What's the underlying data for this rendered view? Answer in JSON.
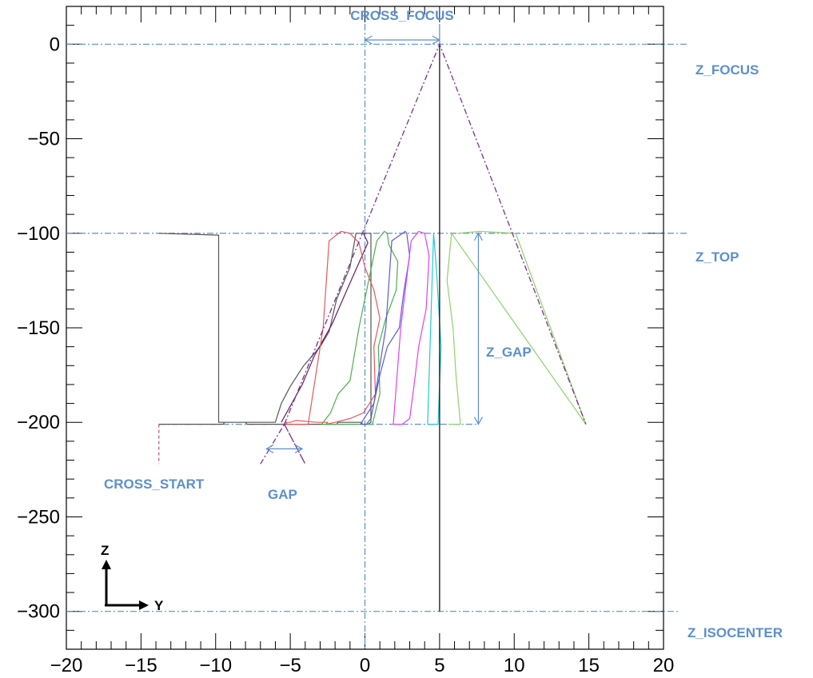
{
  "chart_data": {
    "type": "line",
    "title": "",
    "xlabel": "",
    "ylabel": "",
    "xlim": [
      -20,
      20
    ],
    "ylim": [
      -320,
      20
    ],
    "x_ticks": [
      -20,
      -15,
      -10,
      -5,
      0,
      5,
      10,
      15,
      20
    ],
    "y_ticks": [
      0,
      -50,
      -100,
      -150,
      -200,
      -250,
      -300
    ],
    "grid": false,
    "reference_lines": {
      "z_focus": 0,
      "z_top": -100,
      "z_bottom": -201,
      "z_isocenter": -300,
      "cross_zero": 0,
      "cross_focus": 5
    },
    "series": [
      {
        "color": "#555555",
        "style": "solid",
        "x": [
          -13.8,
          -9.5,
          -9.4,
          -8.0,
          -7.9,
          -1.9,
          -1.8,
          -0.2,
          -0.2,
          0.2,
          0.4,
          0.4,
          -0.6,
          -1.0,
          -1.9,
          -2.4,
          -3.0,
          -4.1,
          -5.0,
          -5.6,
          -6.0,
          -9.8,
          -9.8,
          -13.8
        ],
        "y": [
          -201,
          -201,
          -200,
          -200,
          -201,
          -201,
          -200,
          -200,
          -201,
          -201,
          -200,
          -100,
          -100,
          -118,
          -135,
          -152,
          -160,
          -170,
          -181,
          -190,
          -200,
          -200,
          -101,
          -100
        ]
      },
      {
        "color": "#6a1b6a",
        "style": "solid",
        "x": [
          -0.1,
          0.2,
          -1.1,
          -2.2,
          -3.4,
          -4.2,
          -5.6
        ],
        "y": [
          -100,
          -105,
          -128,
          -148,
          -165,
          -180,
          -200
        ]
      },
      {
        "color": "#e8585a",
        "style": "solid",
        "x": [
          -3.8,
          -5.2,
          -5.3,
          -5.0,
          -4.6,
          -3.2,
          -2.5,
          -2.6,
          -2.0,
          -1.0,
          -0.1,
          0.7,
          0.6,
          1.0,
          0.6,
          0.0,
          -0.4,
          -1.0,
          -1.6,
          -2.4,
          -2.8,
          -3.8
        ],
        "y": [
          -201,
          -201,
          -200,
          -200,
          -199,
          -200,
          -200,
          -201,
          -200,
          -198,
          -195,
          -185,
          -160,
          -145,
          -130,
          -118,
          -105,
          -100,
          -99,
          -104,
          -150,
          -201
        ]
      },
      {
        "color": "#4caf50",
        "style": "solid",
        "x": [
          -2.9,
          0.5,
          1.0,
          0.9,
          1.4,
          2.1,
          2.2,
          1.6,
          1.5,
          1.3,
          0.8,
          -0.4,
          -1.0,
          -1.8,
          -2.3,
          -2.9
        ],
        "y": [
          -201,
          -201,
          -185,
          -160,
          -145,
          -130,
          -115,
          -106,
          -100,
          -99,
          -104,
          -150,
          -178,
          -185,
          -195,
          -201
        ]
      },
      {
        "color": "#5a5ad6",
        "style": "solid",
        "x": [
          -0.3,
          0.1,
          0.4,
          0.6,
          1.0,
          1.5,
          2.3,
          2.6,
          3.0,
          2.8,
          2.7,
          1.8,
          1.4,
          0.6,
          -0.3
        ],
        "y": [
          -201,
          -201,
          -198,
          -190,
          -175,
          -160,
          -150,
          -131,
          -112,
          -100,
          -99,
          -104,
          -150,
          -190,
          -201
        ]
      },
      {
        "color": "#e040fb",
        "style": "solid",
        "x": [
          1.9,
          2.5,
          3.0,
          3.3,
          3.6,
          4.1,
          4.3,
          4.0,
          3.6,
          3.1,
          2.4,
          1.9
        ],
        "y": [
          -201,
          -201,
          -198,
          -180,
          -160,
          -140,
          -112,
          -100,
          -99,
          -104,
          -150,
          -201
        ]
      },
      {
        "color": "#26c6da",
        "style": "solid",
        "x": [
          4.2,
          4.9,
          5.1,
          4.8,
          4.6,
          4.4,
          4.2
        ],
        "y": [
          -201,
          -201,
          -160,
          -120,
          -100,
          -150,
          -201
        ]
      },
      {
        "color": "#8fd16a",
        "style": "solid",
        "x": [
          5.6,
          6.4,
          6.1,
          5.9,
          5.5,
          5.8,
          14.8,
          10.1,
          7.7,
          6.2
        ],
        "y": [
          -201,
          -201,
          -175,
          -150,
          -125,
          -100,
          -201,
          -100,
          -99,
          -100
        ]
      },
      {
        "color": "#000000",
        "style": "solid",
        "x": [
          5,
          5
        ],
        "y": [
          0,
          -300
        ]
      },
      {
        "color": "#7a2f8f",
        "style": "dashdot",
        "x": [
          -5.4,
          5.0,
          14.8
        ],
        "y": [
          -201,
          0,
          -201
        ]
      },
      {
        "color": "#7a2f8f",
        "style": "dashdot",
        "x": [
          -7.0,
          -5.4,
          -4.0,
          -5.4
        ],
        "y": [
          -222,
          -201,
          -222,
          -201
        ]
      }
    ],
    "annotations": {
      "cross_focus": "CROSS_FOCUS",
      "z_focus": "Z_FOCUS",
      "z_top": "Z_TOP",
      "z_gap": "Z_GAP",
      "cross_start": "CROSS_START",
      "gap": "GAP",
      "z_isocenter": "Z_ISOCENTER",
      "axis_z": "Z",
      "axis_y": "Y"
    },
    "colors": {
      "annotation": "#5b8fcf",
      "reference_line": "#5b8fcf",
      "axes": "#000000"
    }
  }
}
